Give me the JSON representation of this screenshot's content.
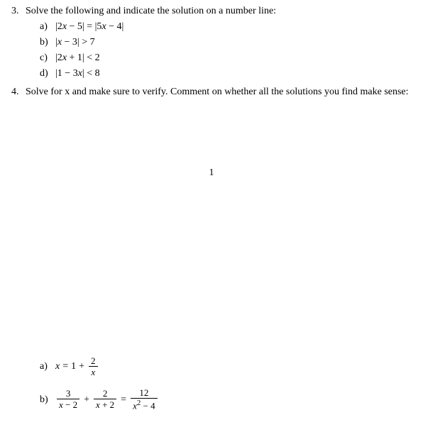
{
  "colors": {
    "text": "#000000",
    "background": "#ffffff"
  },
  "font": {
    "family_serif": "Computer Modern / Latin Modern",
    "base_size_pt": 11
  },
  "problem3": {
    "number": "3.",
    "text": "Solve the following and indicate the solution on a number line:",
    "items": [
      {
        "label": "a)",
        "expr": "|2x − 5| = |5x − 4|"
      },
      {
        "label": "b)",
        "expr": "|x − 3| > 7"
      },
      {
        "label": "c)",
        "expr": "|2x + 1| < 2"
      },
      {
        "label": "d)",
        "expr": "|1 − 3x| < 8"
      }
    ]
  },
  "problem4": {
    "number": "4.",
    "text": "Solve for x and make sure to verify. Comment on whether all the solutions you find make sense:"
  },
  "page_number": "1",
  "lower_items": {
    "a": {
      "label": "a)",
      "lhs_var": "x",
      "eq": "=",
      "rhs_int": "1",
      "plus": "+",
      "frac_num": "2",
      "frac_den_var": "x"
    },
    "b": {
      "label": "b)",
      "t1_num": "3",
      "t1_den_var": "x",
      "t1_den_op": "−",
      "t1_den_const": "2",
      "plus": "+",
      "t2_num": "2",
      "t2_den_var": "x",
      "t2_den_op": "+",
      "t2_den_const": "2",
      "eq": "=",
      "t3_num": "12",
      "t3_den_var": "x",
      "t3_den_exp": "2",
      "t3_den_op": "−",
      "t3_den_const": "4"
    }
  }
}
